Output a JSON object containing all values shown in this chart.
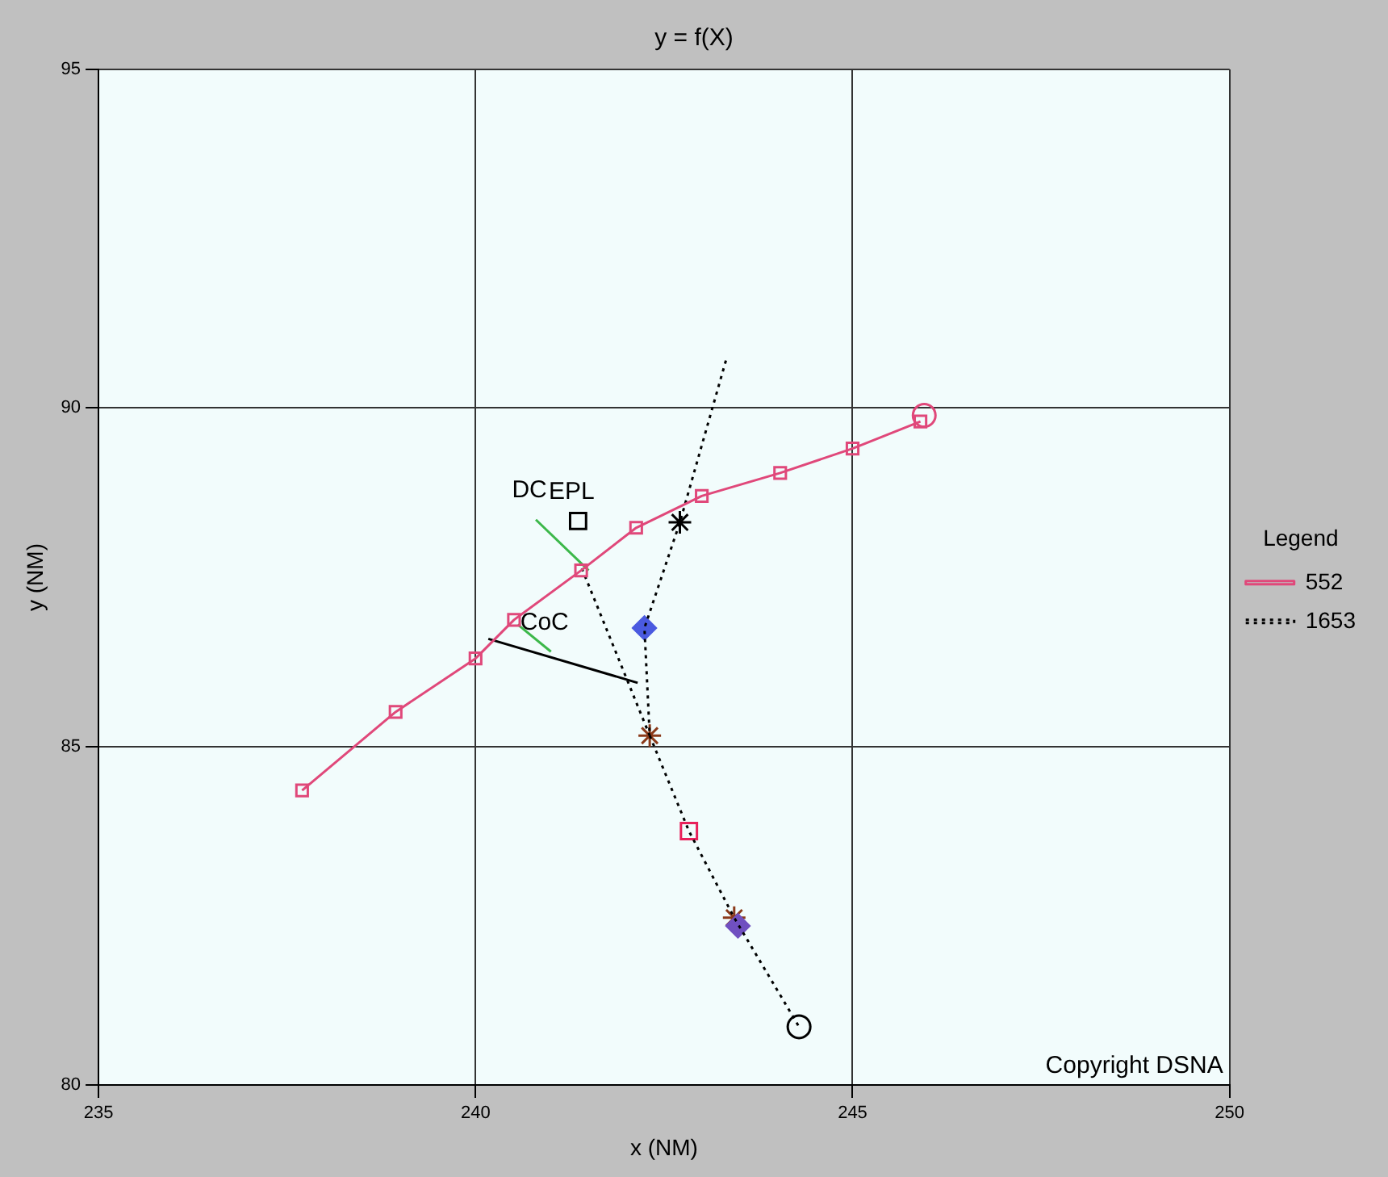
{
  "chart_data": {
    "type": "line",
    "title": "y = f(X)",
    "xlabel": "x (NM)",
    "ylabel": "y (NM)",
    "legend_title": "Legend",
    "legend": "right",
    "grid": true,
    "xlim": [
      235,
      250
    ],
    "xticks": [
      235,
      240,
      245,
      250
    ],
    "ylim": [
      80,
      95
    ],
    "yticks": [
      80,
      85,
      90,
      95
    ],
    "series": [
      {
        "name": "552",
        "color": "#e0487a",
        "marker": "square",
        "line_style": "solid",
        "x": [
          237.7,
          238.94,
          240.0,
          240.51,
          241.4,
          242.13,
          243.0,
          244.04,
          245.0,
          245.9
        ],
        "values": [
          84.35,
          85.51,
          86.3,
          86.87,
          87.6,
          88.23,
          88.7,
          89.04,
          89.4,
          89.8
        ]
      },
      {
        "name": "1653",
        "color": "#000000",
        "marker": "none",
        "line_style": "dotted",
        "x": [
          243.32,
          242.71,
          242.24,
          242.31,
          242.83,
          243.43,
          244.29
        ],
        "values": [
          90.7,
          88.31,
          86.75,
          85.16,
          83.75,
          82.47,
          80.86
        ]
      },
      {
        "color": "#000000",
        "marker": "none",
        "line_style": "dotted",
        "x": [
          241.41,
          242.31
        ],
        "values": [
          87.63,
          85.16
        ]
      },
      {
        "color": "#000000",
        "marker": "none",
        "line_style": "solid",
        "x": [
          240.17,
          242.15
        ],
        "values": [
          86.59,
          85.94
        ]
      },
      {
        "color": "#3cb84a",
        "marker": "none",
        "line_style": "solid",
        "x": [
          240.8,
          241.5
        ],
        "values": [
          88.35,
          87.6
        ]
      },
      {
        "color": "#3cb84a",
        "marker": "none",
        "line_style": "solid",
        "x": [
          240.56,
          241.0
        ],
        "values": [
          86.8,
          86.4
        ]
      },
      {
        "type": "scatter",
        "color": "#000000",
        "marker": "cross",
        "x": [
          242.71
        ],
        "values": [
          88.31
        ]
      },
      {
        "type": "scatter",
        "color": "#4a5ae0",
        "marker": "diamond",
        "x": [
          242.24
        ],
        "values": [
          86.75
        ]
      },
      {
        "type": "scatter",
        "color": "#7050c0",
        "marker": "diamond",
        "x": [
          243.48
        ],
        "values": [
          82.35
        ]
      },
      {
        "type": "scatter",
        "color": "#8b3a1a",
        "marker": "cross",
        "x": [
          242.31,
          243.43
        ],
        "values": [
          85.16,
          82.47
        ]
      },
      {
        "type": "scatter",
        "color": "#e8205a",
        "marker": "square",
        "x": [
          242.83
        ],
        "values": [
          83.75
        ]
      },
      {
        "type": "scatter",
        "color": "#000000",
        "marker": "square",
        "x": [
          241.36
        ],
        "values": [
          88.33
        ]
      },
      {
        "type": "scatter",
        "color": "#e0487a",
        "marker": "circle",
        "x": [
          245.95
        ],
        "values": [
          89.89
        ]
      },
      {
        "type": "scatter",
        "color": "#000000",
        "marker": "circle",
        "x": [
          244.29
        ],
        "values": [
          80.86
        ]
      }
    ],
    "annotations": [
      {
        "text": "EPL",
        "x": 241.36,
        "y": 88.33
      },
      {
        "text": "DC",
        "x": 240.8,
        "y": 88.35
      },
      {
        "text": "CoC",
        "x": 241.0,
        "y": 86.4
      },
      "Copyright DSNA"
    ]
  }
}
